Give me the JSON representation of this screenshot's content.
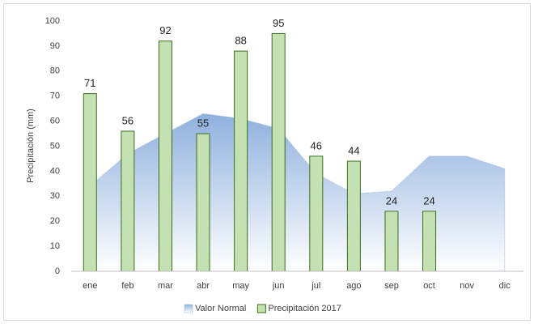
{
  "chart_data": {
    "type": "bar",
    "ylabel": "Precipitación (mm)",
    "categories": [
      "ene",
      "feb",
      "mar",
      "abr",
      "may",
      "jun",
      "jul",
      "ago",
      "sep",
      "oct",
      "nov",
      "dic"
    ],
    "series": [
      {
        "name": "Valor Normal",
        "type": "area",
        "color": "#9dbbe4",
        "values": [
          34,
          47,
          55,
          63,
          61,
          57,
          39,
          31,
          32,
          46,
          46,
          41
        ]
      },
      {
        "name": "Precipitación 2017",
        "type": "bar",
        "color": "#c5e0b3",
        "values": [
          71,
          56,
          92,
          55,
          88,
          95,
          46,
          44,
          24,
          24,
          null,
          null
        ]
      }
    ],
    "ylim": [
      0,
      100
    ],
    "yticks": [
      0,
      10,
      20,
      30,
      40,
      50,
      60,
      70,
      80,
      90,
      100
    ],
    "grid": false,
    "legend": "bottom"
  }
}
